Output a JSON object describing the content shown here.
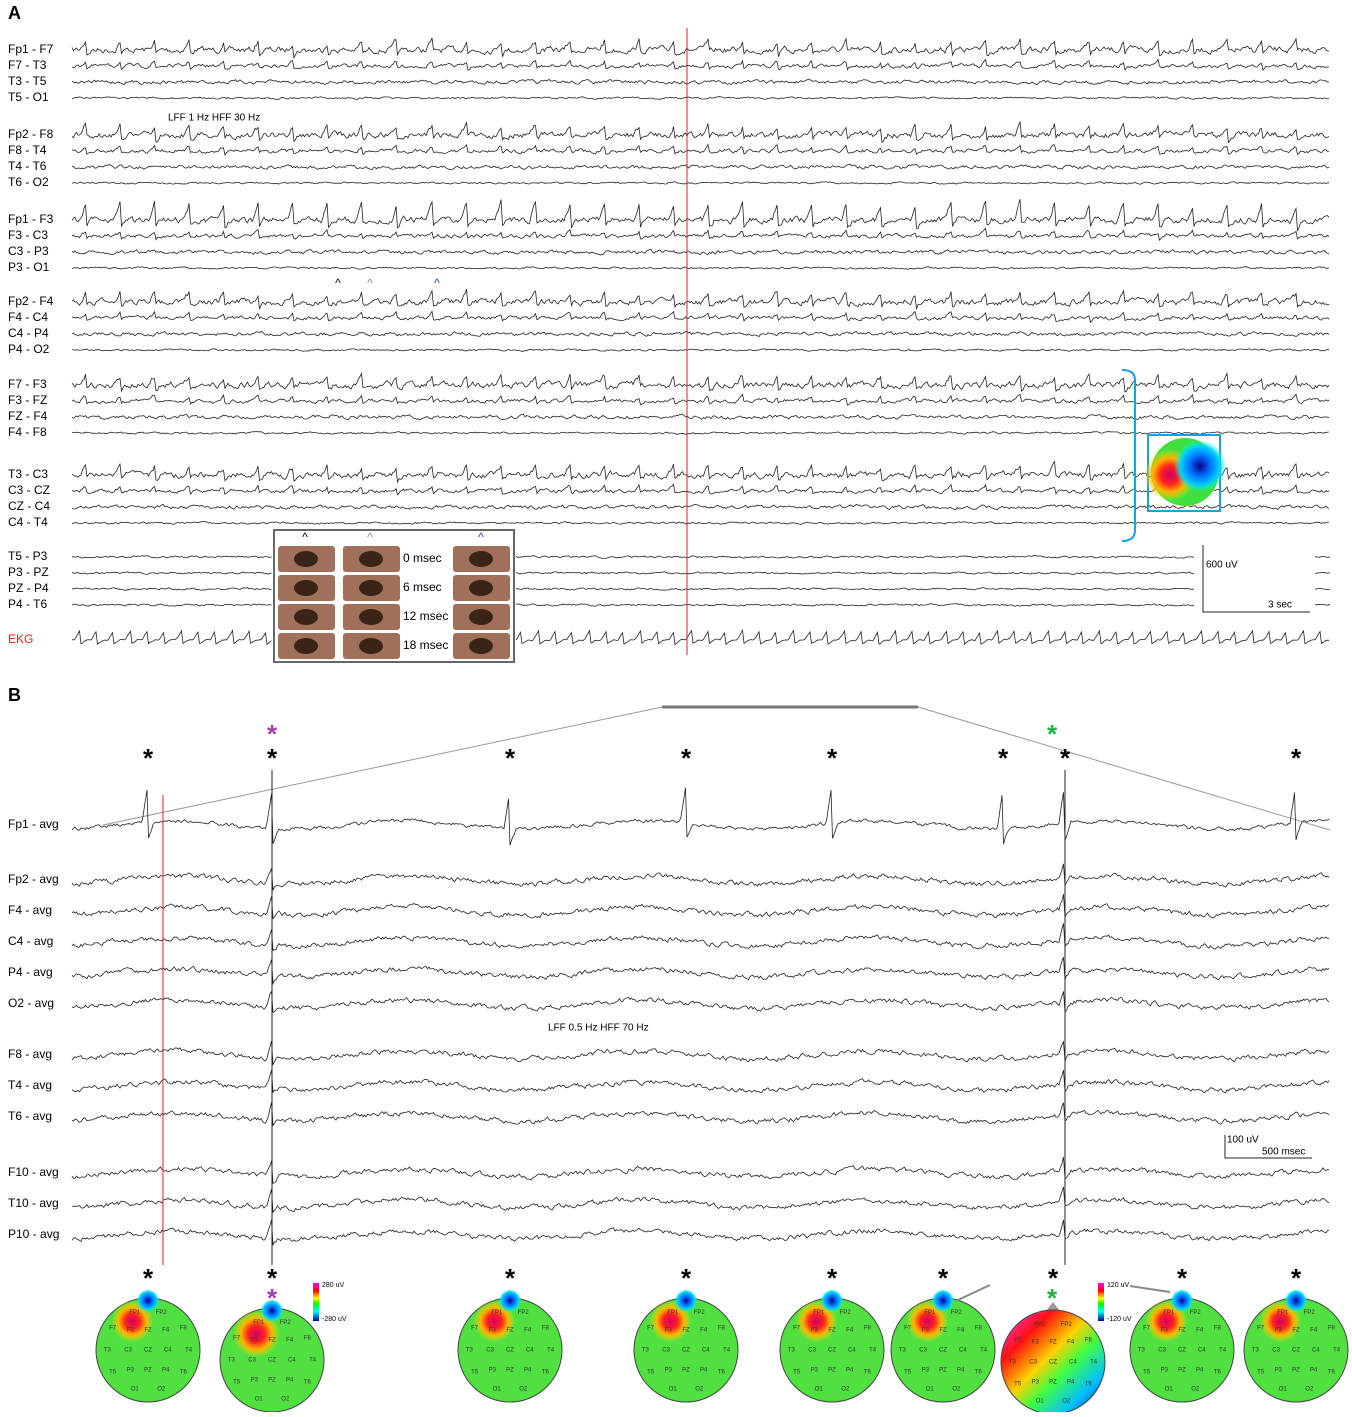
{
  "panel_a": {
    "label": "A",
    "channels": [
      [
        "Fp1 - F7",
        "F7 - T3",
        "T3 - T5",
        "T5 - O1"
      ],
      [
        "Fp2 - F8",
        "F8 - T4",
        "T4 - T6",
        "T6 - O2"
      ],
      [
        "Fp1 - F3",
        "F3 - C3",
        "C3 - P3",
        "P3 - O1"
      ],
      [
        "Fp2 - F4",
        "F4 - C4",
        "C4 - P4",
        "P4 - O2"
      ],
      [
        "F7 - F3",
        "F3 - FZ",
        "FZ - F4",
        "F4 - F8"
      ],
      [
        "T3 - C3",
        "C3 - CZ",
        "CZ - C4",
        "C4 - T4"
      ],
      [
        "T5 - P3",
        "P3 - PZ",
        "PZ - P4",
        "P4 - T6"
      ]
    ],
    "ekg": "EKG",
    "filter": "LFF 1 Hz  HFF 30 Hz",
    "caret": "^",
    "scale": {
      "amplitude": "600 uV",
      "time": "3 sec"
    },
    "inset_times": [
      "0 msec",
      "6 msec",
      "12 msec",
      "18 msec"
    ]
  },
  "panel_b": {
    "label": "B",
    "channels": [
      [
        "Fp1 - avg",
        "Fp2 - avg",
        "F4 - avg",
        "C4 - avg",
        "P4 - avg",
        "O2 - avg"
      ],
      [
        "F8 - avg",
        "T4 - avg",
        "T6 - avg"
      ],
      [
        "F10 - avg",
        "T10 - avg",
        "P10 - avg"
      ]
    ],
    "filter": "LFF 0.5 Hz  HFF 70 Hz",
    "marker": "*",
    "scale": {
      "amplitude": "100 uV",
      "time": "500 msec"
    },
    "colorbars": [
      {
        "max": "280 uV",
        "min": "-280 uV"
      },
      {
        "max": "120 uV",
        "min": "-120 uV"
      }
    ]
  },
  "electrodes": [
    "FP1",
    "FP2",
    "F7",
    "F3",
    "FZ",
    "F4",
    "F8",
    "T3",
    "C3",
    "CZ",
    "C4",
    "T4",
    "T5",
    "P3",
    "PZ",
    "P4",
    "T6",
    "O1",
    "O2"
  ]
}
